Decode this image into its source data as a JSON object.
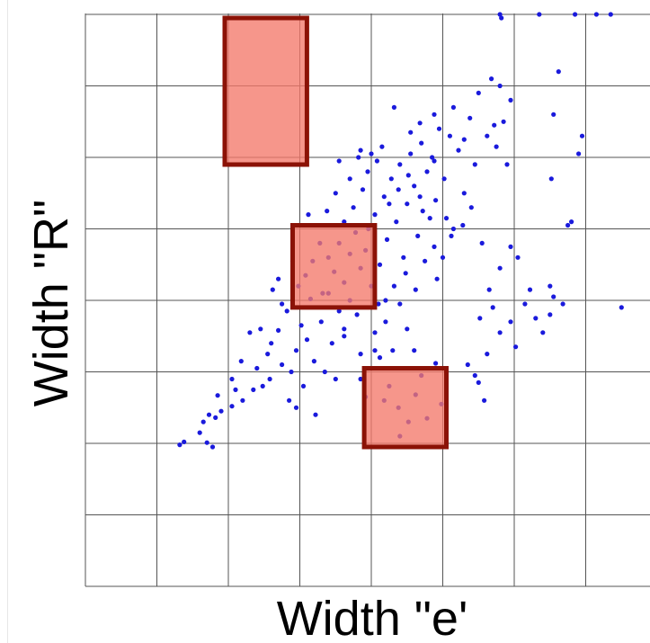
{
  "chart_data": {
    "type": "scatter",
    "title": "",
    "xlabel": "Width \"e'",
    "ylabel": "Width \"R\"",
    "xlim": [
      0,
      8
    ],
    "ylim": [
      0,
      8
    ],
    "grid": true,
    "legend": "none",
    "colors": {
      "points": "#1a1adc",
      "rect_fill": "#f4796a",
      "rect_stroke": "#8b1206",
      "grid": "#555555",
      "background": "#ffffff"
    },
    "highlight_rects": [
      {
        "name": "upper-rect",
        "x0": 1.95,
        "x1": 3.1,
        "y0": 5.9,
        "y1": 7.95
      },
      {
        "name": "middle-rect",
        "x0": 2.9,
        "x1": 4.05,
        "y0": 3.9,
        "y1": 5.05
      },
      {
        "name": "lower-rect",
        "x0": 3.9,
        "x1": 5.05,
        "y0": 1.95,
        "y1": 3.05
      }
    ],
    "series": [
      {
        "points": [
          [
            1.32,
            1.98
          ],
          [
            1.38,
            2.02
          ],
          [
            1.7,
            2.01
          ],
          [
            1.78,
            1.95
          ],
          [
            1.6,
            2.15
          ],
          [
            1.65,
            2.3
          ],
          [
            1.73,
            2.4
          ],
          [
            1.82,
            2.36
          ],
          [
            1.9,
            2.45
          ],
          [
            2.05,
            2.52
          ],
          [
            1.85,
            2.67
          ],
          [
            2.05,
            2.9
          ],
          [
            2.2,
            2.6
          ],
          [
            2.35,
            2.75
          ],
          [
            2.4,
            3.05
          ],
          [
            2.48,
            2.8
          ],
          [
            2.55,
            3.25
          ],
          [
            2.6,
            3.4
          ],
          [
            2.7,
            3.58
          ],
          [
            2.75,
            3.1
          ],
          [
            2.82,
            3.85
          ],
          [
            2.85,
            2.6
          ],
          [
            2.88,
            3.0
          ],
          [
            2.95,
            3.3
          ],
          [
            3.02,
            3.65
          ],
          [
            3.1,
            3.45
          ],
          [
            3.2,
            3.15
          ],
          [
            3.3,
            3.7
          ],
          [
            3.35,
            3.0
          ],
          [
            3.45,
            3.4
          ],
          [
            3.5,
            2.9
          ],
          [
            3.55,
            3.85
          ],
          [
            3.62,
            3.6
          ],
          [
            3.7,
            4.0
          ],
          [
            3.8,
            3.8
          ],
          [
            3.85,
            3.25
          ],
          [
            3.92,
            2.65
          ],
          [
            4.05,
            3.55
          ],
          [
            4.1,
            3.95
          ],
          [
            4.2,
            3.7
          ],
          [
            4.3,
            3.3
          ],
          [
            4.4,
            3.95
          ],
          [
            4.5,
            3.6
          ],
          [
            4.6,
            3.3
          ],
          [
            2.98,
            4.2
          ],
          [
            3.08,
            4.35
          ],
          [
            3.18,
            4.55
          ],
          [
            3.28,
            4.8
          ],
          [
            3.32,
            4.1
          ],
          [
            3.4,
            4.6
          ],
          [
            3.48,
            4.4
          ],
          [
            3.55,
            4.8
          ],
          [
            3.62,
            4.25
          ],
          [
            3.7,
            4.65
          ],
          [
            3.78,
            4.95
          ],
          [
            3.85,
            4.45
          ],
          [
            3.92,
            4.7
          ],
          [
            3.96,
            5.0
          ],
          [
            4.0,
            4.2
          ],
          [
            4.05,
            5.2
          ],
          [
            4.12,
            4.5
          ],
          [
            4.18,
            5.45
          ],
          [
            4.22,
            4.85
          ],
          [
            4.28,
            5.7
          ],
          [
            4.35,
            5.1
          ],
          [
            4.4,
            5.9
          ],
          [
            4.45,
            4.6
          ],
          [
            4.5,
            5.35
          ],
          [
            4.55,
            6.05
          ],
          [
            4.6,
            5.6
          ],
          [
            4.65,
            4.9
          ],
          [
            4.7,
            6.2
          ],
          [
            4.72,
            5.25
          ],
          [
            4.78,
            5.8
          ],
          [
            4.85,
            6.0
          ],
          [
            4.9,
            5.4
          ],
          [
            4.95,
            6.4
          ],
          [
            5.02,
            5.7
          ],
          [
            5.1,
            6.3
          ],
          [
            5.15,
            5.0
          ],
          [
            5.22,
            6.1
          ],
          [
            5.3,
            5.5
          ],
          [
            5.38,
            6.55
          ],
          [
            5.45,
            5.9
          ],
          [
            5.5,
            6.9
          ],
          [
            5.55,
            4.8
          ],
          [
            5.62,
            6.3
          ],
          [
            4.2,
            4.0
          ],
          [
            4.32,
            4.2
          ],
          [
            4.48,
            4.38
          ],
          [
            4.62,
            4.15
          ],
          [
            4.75,
            4.55
          ],
          [
            4.88,
            4.75
          ],
          [
            5.0,
            4.6
          ],
          [
            5.12,
            4.9
          ],
          [
            5.28,
            5.05
          ],
          [
            3.62,
            5.1
          ],
          [
            3.75,
            5.3
          ],
          [
            3.88,
            5.55
          ],
          [
            3.95,
            5.8
          ],
          [
            4.08,
            5.95
          ],
          [
            4.15,
            6.15
          ],
          [
            4.25,
            5.35
          ],
          [
            4.38,
            5.55
          ],
          [
            4.52,
            5.75
          ],
          [
            4.68,
            5.45
          ],
          [
            4.82,
            5.15
          ],
          [
            4.92,
            4.3
          ],
          [
            4.12,
            3.2
          ],
          [
            4.38,
            2.5
          ],
          [
            4.52,
            2.3
          ],
          [
            4.62,
            2.68
          ],
          [
            4.78,
            2.35
          ],
          [
            4.98,
            2.55
          ],
          [
            4.4,
            2.1
          ],
          [
            4.25,
            2.8
          ],
          [
            4.7,
            2.95
          ],
          [
            5.35,
            3.1
          ],
          [
            5.5,
            2.85
          ],
          [
            5.58,
            2.6
          ],
          [
            5.45,
            2.95
          ],
          [
            5.62,
            3.25
          ],
          [
            5.7,
            3.9
          ],
          [
            5.8,
            3.55
          ],
          [
            5.95,
            3.7
          ],
          [
            6.02,
            3.35
          ],
          [
            6.15,
            3.95
          ],
          [
            6.22,
            4.15
          ],
          [
            6.3,
            3.75
          ],
          [
            6.4,
            3.55
          ],
          [
            6.5,
            3.8
          ],
          [
            6.55,
            4.05
          ],
          [
            6.68,
            3.95
          ],
          [
            5.8,
            4.45
          ],
          [
            5.95,
            4.75
          ],
          [
            6.05,
            4.6
          ],
          [
            6.5,
            4.2
          ],
          [
            7.5,
            3.9
          ],
          [
            5.52,
            3.75
          ],
          [
            5.65,
            4.15
          ],
          [
            5.75,
            6.15
          ],
          [
            5.9,
            5.9
          ],
          [
            5.68,
            7.1
          ],
          [
            5.72,
            6.45
          ],
          [
            5.85,
            6.5
          ],
          [
            5.95,
            6.8
          ],
          [
            6.55,
            6.6
          ],
          [
            6.52,
            5.7
          ],
          [
            6.75,
            5.05
          ],
          [
            6.9,
            6.05
          ],
          [
            6.8,
            5.1
          ],
          [
            4.32,
            6.7
          ],
          [
            5.8,
            7.0
          ],
          [
            6.62,
            7.2
          ],
          [
            6.95,
            6.3
          ],
          [
            5.8,
            8.0
          ],
          [
            5.82,
            7.95
          ],
          [
            6.35,
            8.0
          ],
          [
            6.85,
            8.0
          ],
          [
            7.15,
            8.0
          ],
          [
            7.35,
            8.0
          ],
          [
            4.0,
            6.05
          ],
          [
            3.85,
            6.1
          ],
          [
            3.7,
            5.7
          ],
          [
            3.5,
            5.5
          ],
          [
            2.75,
            3.95
          ],
          [
            2.62,
            4.15
          ],
          [
            2.9,
            4.55
          ],
          [
            3.15,
            4.02
          ],
          [
            3.4,
            4.1
          ],
          [
            3.62,
            3.5
          ],
          [
            2.95,
            2.5
          ],
          [
            3.22,
            2.4
          ],
          [
            3.05,
            2.8
          ],
          [
            2.58,
            2.9
          ],
          [
            2.3,
            3.55
          ],
          [
            2.1,
            2.75
          ],
          [
            2.18,
            3.15
          ],
          [
            2.45,
            3.6
          ],
          [
            2.7,
            4.3
          ],
          [
            3.12,
            5.2
          ],
          [
            3.38,
            5.25
          ],
          [
            3.55,
            5.95
          ],
          [
            3.82,
            6.0
          ],
          [
            4.55,
            6.35
          ],
          [
            4.68,
            6.48
          ],
          [
            4.88,
            6.6
          ],
          [
            5.15,
            6.7
          ],
          [
            5.3,
            6.25
          ],
          [
            5.4,
            5.3
          ],
          [
            4.05,
            3.3
          ],
          [
            3.85,
            2.9
          ],
          [
            4.18,
            2.6
          ],
          [
            4.9,
            3.12
          ],
          [
            4.88,
            5.95
          ],
          [
            5.05,
            5.15
          ]
        ]
      }
    ]
  }
}
